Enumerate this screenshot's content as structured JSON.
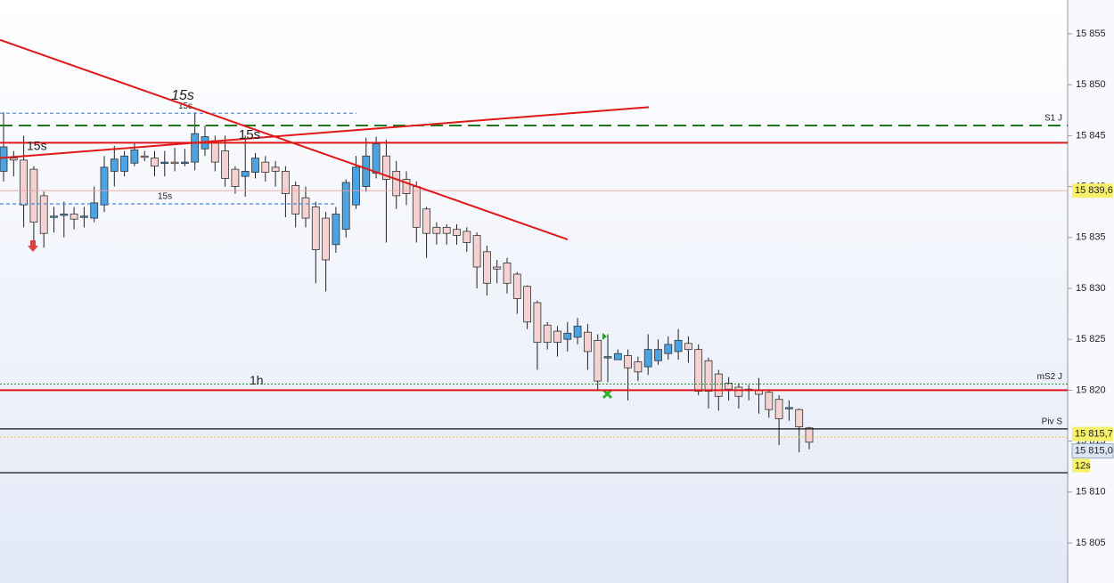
{
  "chart_data": {
    "type": "candlestick",
    "open": [
      15841.5,
      15842.8,
      15842.6,
      15841.7,
      15839.1,
      15837,
      15837.2,
      15837.3,
      15837,
      15836.9,
      15838.2,
      15841.5,
      15841.5,
      15842.3,
      15843,
      15842.8,
      15842.3,
      15842.4,
      15842.3,
      15842.4,
      15843.7,
      15844.5,
      15843.5,
      15841.7,
      15841,
      15841.4,
      15842.4,
      15841.9,
      15841.5,
      15840.1,
      15838.9,
      15838,
      15836.9,
      15834.3,
      15835.8,
      15838.2,
      15840,
      15841.3,
      15843,
      15841.5,
      15840.7,
      15840,
      15837.8,
      15836,
      15836,
      15835.8,
      15835.6,
      15835.2,
      15833.6,
      15832.1,
      15832.5,
      15831.4,
      15830.2,
      15828.6,
      15826.4,
      15825.8,
      15825,
      15825.2,
      15825.7,
      15824.9,
      15823.2,
      15823,
      15823.4,
      15822.8,
      15822.3,
      15822.9,
      15823.6,
      15823.8,
      15824.6,
      15824,
      15822.9,
      15821.6,
      15820.7,
      15820.3,
      15820,
      15820,
      15819.8,
      15819.1,
      15818.2,
      15818.1,
      15816.3
    ],
    "high": [
      15847.3,
      15843.5,
      15845,
      15842,
      15839.5,
      15838,
      15838.5,
      15838,
      15838,
      15840,
      15843,
      15844,
      15843.5,
      15844.3,
      15843.5,
      15843.5,
      15843.5,
      15843.8,
      15843.7,
      15847.3,
      15846,
      15845,
      15845,
      15842,
      15845,
      15843.3,
      15843,
      15842.5,
      15842,
      15840.5,
      15840,
      15838.5,
      15837.5,
      15838,
      15840.7,
      15843,
      15844.8,
      15844.9,
      15844.6,
      15842.5,
      15841.5,
      15840.5,
      15838,
      15836.5,
      15836.3,
      15836.3,
      15836,
      15835.5,
      15834.2,
      15832.8,
      15833,
      15831.6,
      15830.3,
      15828.8,
      15826.7,
      15826.3,
      15826.7,
      15827.1,
      15826.5,
      15825.5,
      15825.5,
      15824,
      15824,
      15823.3,
      15825.5,
      15825,
      15825.3,
      15826,
      15825.3,
      15824.5,
      15823.2,
      15822,
      15821.3,
      15820.7,
      15820.5,
      15821.2,
      15820.1,
      15819.5,
      15819,
      15818.2,
      15816.4
    ],
    "low": [
      15840.5,
      15841,
      15836,
      15834.5,
      15834,
      15835.5,
      15835,
      15835.8,
      15836,
      15836.5,
      15837.5,
      15840,
      15841,
      15842,
      15842.5,
      15841,
      15841,
      15841.5,
      15842,
      15841.6,
      15843,
      15841.5,
      15840,
      15839.3,
      15839,
      15840.8,
      15840.5,
      15840,
      15837,
      15836,
      15836,
      15830.5,
      15829.7,
      15833.5,
      15835,
      15837.8,
      15839.5,
      15840.8,
      15834.5,
      15837.8,
      15838.2,
      15834.5,
      15833,
      15834.3,
      15834.3,
      15834.3,
      15833.6,
      15830,
      15829.3,
      15830.5,
      15829.5,
      15827.5,
      15826,
      15822,
      15824,
      15823.3,
      15823.8,
      15824.5,
      15822,
      15820,
      15820.8,
      15823,
      15819,
      15820.9,
      15821.5,
      15822.5,
      15823,
      15823,
      15822.7,
      15819.5,
      15818.2,
      15818,
      15819,
      15818.2,
      15819,
      15817.7,
      15817.3,
      15814.6,
      15817,
      15813.9,
      15814.2
    ],
    "close": [
      15843.9,
      15842.6,
      15838.2,
      15836.5,
      15835.4,
      15837.1,
      15837.3,
      15836.8,
      15837.1,
      15838.4,
      15841.9,
      15842.7,
      15843,
      15843.6,
      15842.9,
      15842,
      15842.4,
      15842.3,
      15842.4,
      15845.2,
      15844.9,
      15842.4,
      15840.8,
      15840,
      15841.5,
      15842.8,
      15841.4,
      15841.5,
      15839.3,
      15837.3,
      15836.9,
      15833.8,
      15832.8,
      15837.3,
      15840.4,
      15841.9,
      15843,
      15844.2,
      15840.7,
      15839.1,
      15839.3,
      15836,
      15835.4,
      15835.4,
      15835.4,
      15835.2,
      15834.5,
      15832.1,
      15830.5,
      15831.9,
      15830.5,
      15829,
      15826.7,
      15824.7,
      15824.7,
      15824.7,
      15825.6,
      15826.3,
      15823.8,
      15820.9,
      15823.3,
      15823.6,
      15822.2,
      15821.8,
      15824,
      15824,
      15824.5,
      15824.9,
      15824,
      15819.9,
      15819.9,
      15819.4,
      15820.1,
      15819.4,
      15820.1,
      15819.6,
      15818.1,
      15817.2,
      15818.3,
      15816.4,
      15814.9
    ],
    "bull_color": "#4ba3e3",
    "bear_color": "#f4d2d2",
    "ylim": [
      15801.07,
      15858.32
    ],
    "yticks": [
      {
        "value": 15805,
        "label": "15 805"
      },
      {
        "value": 15810,
        "label": "15 810"
      },
      {
        "value": 15815,
        "label": "15 815"
      },
      {
        "value": 15820,
        "label": "15 820"
      },
      {
        "value": 15825,
        "label": "15 825"
      },
      {
        "value": 15830,
        "label": "15 830"
      },
      {
        "value": 15835,
        "label": "15 835"
      },
      {
        "value": 15840,
        "label": "15 840"
      },
      {
        "value": 15845,
        "label": "15 845"
      },
      {
        "value": 15850,
        "label": "15 850"
      },
      {
        "value": 15855,
        "label": "15 855"
      }
    ],
    "levels": [
      {
        "value": 15847.2,
        "label": "15s",
        "color": "#5b8fd6",
        "style": "dashed"
      },
      {
        "value": 15846,
        "label": "S1 J",
        "color": "#1f7a1f",
        "style": "longdash"
      },
      {
        "value": 15844.3,
        "color": "#e01818",
        "style": "solid"
      },
      {
        "value": 15839.6,
        "color": "#f0a0a0",
        "style": "thin"
      },
      {
        "value": 15838.3,
        "label": "15s",
        "color": "#5b8fd6",
        "style": "dashed"
      },
      {
        "value": 15820.6,
        "label": "mS2 J",
        "color": "#1f9a1f",
        "style": "dotted"
      },
      {
        "value": 15820,
        "label": "1h",
        "color": "#e01818",
        "style": "solid"
      },
      {
        "value": 15816.2,
        "label": "Piv S",
        "color": "#111111",
        "style": "black"
      },
      {
        "value": 15815.4,
        "color": "#f0c040",
        "style": "dotted"
      },
      {
        "value": 15811.9,
        "color": "#111111",
        "style": "black"
      }
    ],
    "trendlines": [
      {
        "label": "15s",
        "start": 15854.4,
        "end": 15834.8
      },
      {
        "label": "15s",
        "start": 15842.8,
        "end": 15847.8
      }
    ],
    "annotations": [
      "15s"
    ],
    "price_tags": [
      {
        "value": 15839.6,
        "label": "15 839,6",
        "color": "#f6f06a"
      },
      {
        "value": 15815.7,
        "label": "15 815,7",
        "color": "#f6f06a"
      },
      {
        "value": 15815,
        "label": "15 815,0",
        "color": "#dbe6f5"
      }
    ],
    "timer": "12s"
  }
}
